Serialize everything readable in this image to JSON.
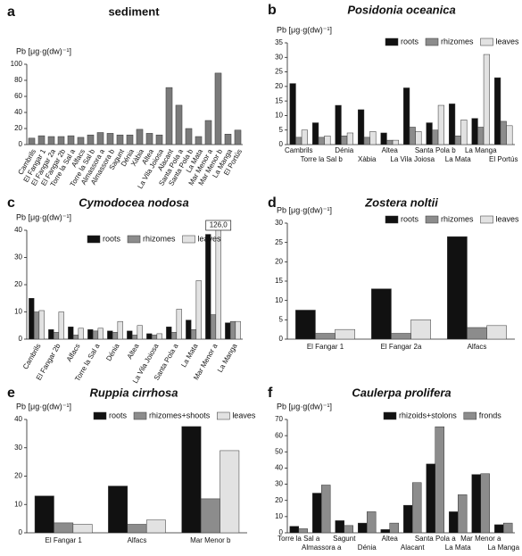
{
  "chart_data": [
    {
      "type": "bar",
      "label": "a",
      "title": "sediment",
      "y_label": "Pb [μg·g(dw)⁻¹]",
      "categories": [
        "Cambrils",
        "El Fangar 1",
        "El Fangar 2a",
        "El Fangar 2b",
        "Torre la Sal a",
        "Alfacs",
        "Torre la Sal b",
        "Almassora a",
        "Almassora b",
        "Sagunt",
        "Dénia",
        "Xàbia",
        "Altea",
        "La Vila Joiosa",
        "Alacant",
        "Santa Pola a",
        "Santa Pola b",
        "La Mata",
        "Mar Menor a",
        "Mar Menor b",
        "La Manga",
        "El Portús"
      ],
      "values": [
        8,
        11,
        10,
        10,
        11,
        9,
        12,
        15,
        14,
        12,
        12,
        19,
        14,
        12,
        71,
        49,
        20,
        10,
        30,
        89,
        13,
        18
      ],
      "color": "#7a7a7a",
      "ylim": [
        0,
        100
      ],
      "yticks": [
        0,
        20,
        40,
        60,
        80,
        100
      ]
    },
    {
      "type": "bar",
      "label": "b",
      "title": "Posidonia oceanica",
      "y_label": "Pb [μg·g(dw)⁻¹]",
      "categories": [
        "Cambrils",
        "Torre la Sal b",
        "Dénia",
        "Xàbia",
        "Altea",
        "La Vila Joiosa",
        "Santa Pola b",
        "La Mata",
        "La Manga",
        "El Portús"
      ],
      "series": [
        {
          "name": "roots",
          "color": "#111111",
          "values": [
            21,
            7.5,
            13.5,
            12,
            4,
            19.5,
            7.5,
            14,
            9,
            23
          ]
        },
        {
          "name": "rhizomes",
          "color": "#8c8c8c",
          "values": [
            2.5,
            2.5,
            3,
            2.5,
            1.5,
            6,
            5,
            3,
            6,
            8
          ]
        },
        {
          "name": "leaves",
          "color": "#e2e2e2",
          "values": [
            5,
            3,
            4,
            4.5,
            1.5,
            4.5,
            13.5,
            8.5,
            31,
            6.5
          ]
        }
      ],
      "ylim": [
        0,
        35
      ],
      "yticks": [
        0,
        5,
        10,
        15,
        20,
        25,
        30,
        35
      ]
    },
    {
      "type": "bar",
      "label": "c",
      "title": "Cymodocea nodosa",
      "y_label": "Pb [μg·g(dw)⁻¹]",
      "categories": [
        "Cambrils",
        "El Fangar 2b",
        "Alfacs",
        "Torre la Sal a",
        "Dénia",
        "Altea",
        "La Vila Joiosa",
        "Santa Pola a",
        "La Mata",
        "Mar Menor a",
        "La Manga"
      ],
      "series": [
        {
          "name": "roots",
          "color": "#111111",
          "values": [
            15,
            3.5,
            4.5,
            3.5,
            3,
            3,
            2,
            4.5,
            7,
            38.5,
            6
          ]
        },
        {
          "name": "rhizomes",
          "color": "#8c8c8c",
          "values": [
            10,
            2.5,
            1.5,
            3,
            2.5,
            1.5,
            1.5,
            2.5,
            3.5,
            9,
            6.5
          ]
        },
        {
          "name": "leaves",
          "color": "#e2e2e2",
          "values": [
            10.5,
            10,
            4,
            4,
            6.5,
            5,
            2,
            11,
            21.5,
            126,
            6.5
          ],
          "value_labels": [
            null,
            null,
            null,
            null,
            null,
            null,
            null,
            null,
            null,
            "126,0",
            null
          ]
        }
      ],
      "ylim": [
        0,
        40
      ],
      "yticks": [
        0,
        10,
        20,
        30,
        40
      ]
    },
    {
      "type": "bar",
      "label": "d",
      "title": "Zostera noltii",
      "y_label": "Pb [μg·g(dw)⁻¹]",
      "categories": [
        "El Fangar 1",
        "El Fangar 2a",
        "Alfacs"
      ],
      "series": [
        {
          "name": "roots",
          "color": "#111111",
          "values": [
            7.5,
            13,
            26.5
          ]
        },
        {
          "name": "rhizomes",
          "color": "#8c8c8c",
          "values": [
            1.5,
            1.5,
            3
          ]
        },
        {
          "name": "leaves",
          "color": "#e2e2e2",
          "values": [
            2.5,
            5,
            3.5
          ]
        }
      ],
      "ylim": [
        0,
        30
      ],
      "yticks": [
        0,
        5,
        10,
        15,
        20,
        25,
        30
      ]
    },
    {
      "type": "bar",
      "label": "e",
      "title": "Ruppia cirrhosa",
      "y_label": "Pb [μg·g(dw)⁻¹]",
      "categories": [
        "El Fangar 1",
        "Alfacs",
        "Mar Menor b"
      ],
      "series": [
        {
          "name": "roots",
          "color": "#111111",
          "values": [
            13,
            16.5,
            37.5
          ]
        },
        {
          "name": "rhizomes+shoots",
          "color": "#8c8c8c",
          "values": [
            3.5,
            3,
            12
          ]
        },
        {
          "name": "leaves",
          "color": "#e2e2e2",
          "values": [
            3,
            4.5,
            29
          ]
        }
      ],
      "ylim": [
        0,
        40
      ],
      "yticks": [
        0,
        10,
        20,
        30,
        40
      ]
    },
    {
      "type": "bar",
      "label": "f",
      "title": "Caulerpa prolifera",
      "y_label": "Pb [μg·g(dw)⁻¹]",
      "categories": [
        "Torre la Sal a",
        "Almassora a",
        "Sagunt",
        "Dénia",
        "Altea",
        "Alacant",
        "Santa Pola a",
        "La Mata",
        "Mar Menor a",
        "La Manga"
      ],
      "series": [
        {
          "name": "rhizoids+stolons",
          "color": "#111111",
          "values": [
            4,
            24.5,
            7.5,
            6,
            2,
            17,
            42.5,
            13,
            36,
            5
          ]
        },
        {
          "name": "fronds",
          "color": "#8c8c8c",
          "values": [
            2.5,
            29.5,
            4.5,
            13,
            6,
            31,
            65.5,
            23.5,
            36.5,
            6
          ]
        }
      ],
      "ylim": [
        0,
        70
      ],
      "yticks": [
        0,
        10,
        20,
        30,
        40,
        50,
        60,
        70
      ]
    }
  ]
}
